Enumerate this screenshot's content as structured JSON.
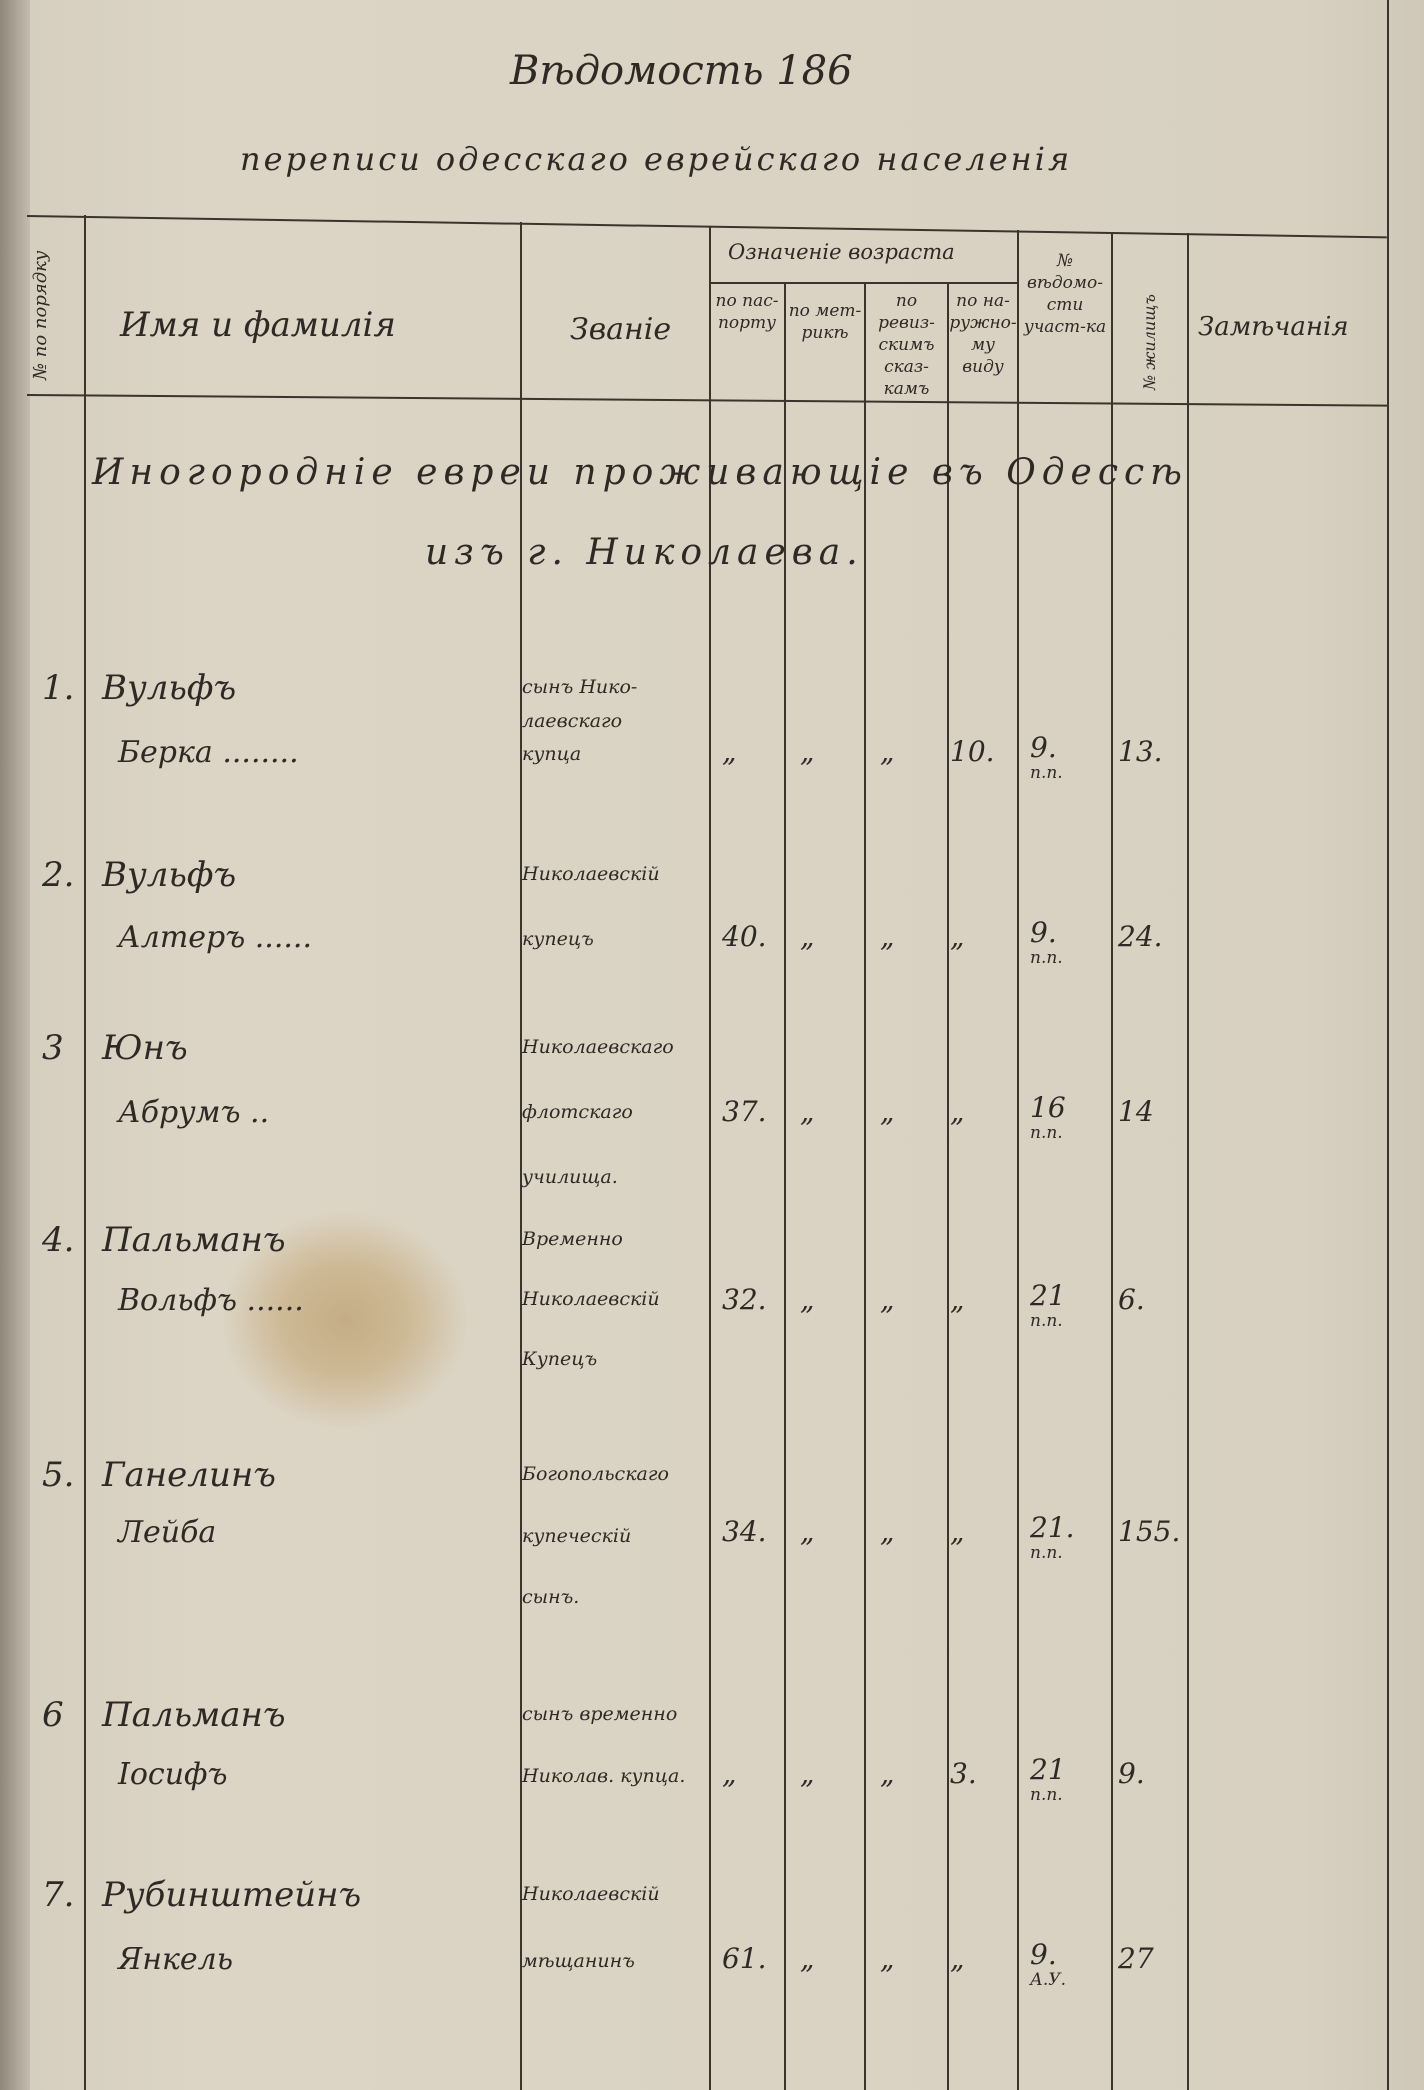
{
  "title": "Вѣдомость 186",
  "subtitle": "переписи одесскаго еврейскаго населенія",
  "header": {
    "number": "№ по порядку",
    "name": "Имя и фамилія",
    "rank": "Званіе",
    "age_group": "Означеніе возраста",
    "age_cols": [
      "по пас-порту",
      "по мет-рикѣ",
      "по ревиз-скимъ сказ-камъ",
      "по на-ружно-му виду"
    ],
    "register": "№ вѣдомо-сти участ-ка",
    "house": "№ жилищъ",
    "remarks": "Замѣчанія"
  },
  "section": [
    "Иногородніе евреи проживающіе въ Одессѣ",
    "изъ г. Николаева."
  ],
  "rows": [
    {
      "num": "1.",
      "name": [
        "Вульфъ",
        "Берка ........"
      ],
      "rank": [
        "сынъ Нико-",
        "лаевскаго",
        "купца"
      ],
      "age": [
        "„",
        "„",
        "„",
        "10."
      ],
      "register": [
        "9.",
        "п.п."
      ],
      "house": "13."
    },
    {
      "num": "2.",
      "name": [
        "Вульфъ",
        "Алтеръ ......"
      ],
      "rank": [
        "Николаевскій",
        "купецъ"
      ],
      "age": [
        "40.",
        "„",
        "„",
        "„"
      ],
      "register": [
        "9.",
        "п.п."
      ],
      "house": "24."
    },
    {
      "num": "3",
      "name": [
        "Юнъ",
        "Абрумъ .."
      ],
      "rank": [
        "Николаевскаго",
        "флотскаго",
        "училища."
      ],
      "age": [
        "37.",
        "„",
        "„",
        "„"
      ],
      "register": [
        "16",
        "п.п."
      ],
      "house": "14"
    },
    {
      "num": "4.",
      "name": [
        "Пальманъ",
        "Вольфъ ......"
      ],
      "rank": [
        "Временно",
        "Николаевскій",
        "Купецъ"
      ],
      "age": [
        "32.",
        "„",
        "„",
        "„"
      ],
      "register": [
        "21",
        "п.п."
      ],
      "house": "6."
    },
    {
      "num": "5.",
      "name": [
        "Ганелинъ",
        "Лейба"
      ],
      "rank": [
        "Богопольскаго",
        "купеческій",
        "сынъ."
      ],
      "age": [
        "34.",
        "„",
        "„",
        "„"
      ],
      "register": [
        "21.",
        "п.п."
      ],
      "house": "155."
    },
    {
      "num": "6",
      "name": [
        "Пальманъ",
        "Іосифъ"
      ],
      "rank": [
        "сынъ временно",
        "Николав. купца."
      ],
      "age": [
        "„",
        "„",
        "„",
        "3."
      ],
      "register": [
        "21",
        "п.п."
      ],
      "house": "9."
    },
    {
      "num": "7.",
      "name": [
        "Рубинштейнъ",
        "Янкель"
      ],
      "rank": [
        "Николаевскій",
        "мѣщанинъ"
      ],
      "age": [
        "61.",
        "„",
        "„",
        "„"
      ],
      "register": [
        "9.",
        "А.У."
      ],
      "house": "27"
    }
  ]
}
